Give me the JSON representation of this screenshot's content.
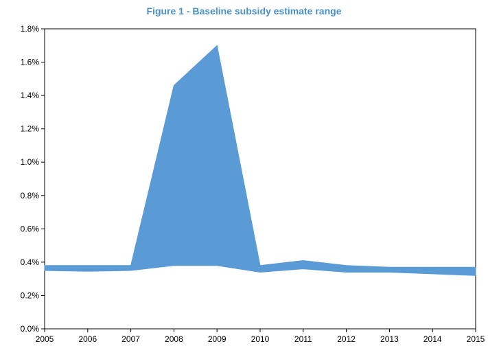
{
  "chart_data": {
    "type": "area",
    "title": "Figure 1 - Baseline subsidy estimate range",
    "title_color": "#4a90c8",
    "fill_color": "#5b9bd5",
    "x": [
      "2005",
      "2006",
      "2007",
      "2008",
      "2009",
      "2010",
      "2011",
      "2012",
      "2013",
      "2014",
      "2015"
    ],
    "series": [
      {
        "role": "lower",
        "values": [
          0.0035,
          0.00345,
          0.0035,
          0.0038,
          0.0038,
          0.0034,
          0.0036,
          0.0034,
          0.0034,
          0.0033,
          0.0032
        ]
      },
      {
        "role": "upper",
        "values": [
          0.0038,
          0.0038,
          0.0038,
          0.0146,
          0.017,
          0.0038,
          0.0041,
          0.0038,
          0.0037,
          0.0037,
          0.0037
        ]
      }
    ],
    "y_ticks": [
      "0.0%",
      "0.2%",
      "0.4%",
      "0.6%",
      "0.8%",
      "1.0%",
      "1.2%",
      "1.4%",
      "1.6%",
      "1.8%"
    ],
    "ylim": [
      0,
      0.018
    ],
    "grid": false,
    "legend": "none"
  }
}
